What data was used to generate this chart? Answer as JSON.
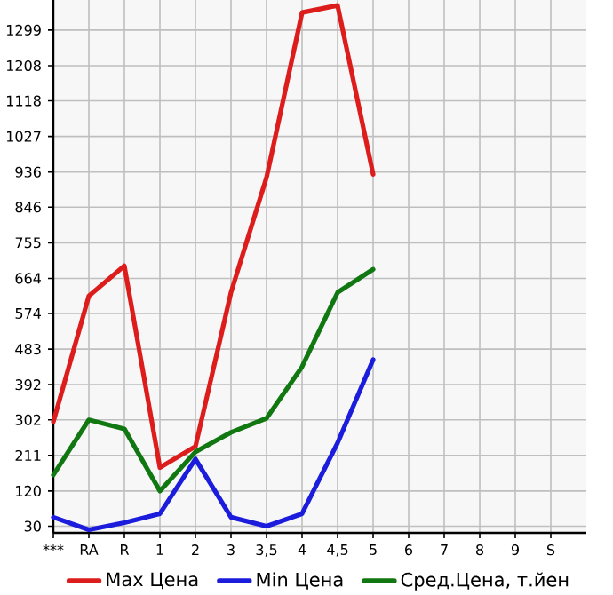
{
  "chart_data": {
    "type": "line",
    "categories": [
      "***",
      "RA",
      "R",
      "1",
      "2",
      "3",
      "3,5",
      "4",
      "4,5",
      "5",
      "6",
      "7",
      "8",
      "9",
      "S"
    ],
    "series": [
      {
        "name": "Max Цена",
        "color": "#dd1c1c",
        "values": [
          297,
          619,
          696,
          180,
          234,
          628,
          922,
          1344,
          1362,
          930,
          null,
          null,
          null,
          null,
          null
        ]
      },
      {
        "name": "Min Цена",
        "color": "#1c1cdd",
        "values": [
          53,
          21,
          39,
          62,
          202,
          53,
          30,
          62,
          243,
          456,
          null,
          null,
          null,
          null,
          null
        ]
      },
      {
        "name": "Сред.Цена, т.йен",
        "color": "#117711",
        "values": [
          161,
          302,
          279,
          120,
          220,
          270,
          306,
          438,
          628,
          687,
          null,
          null,
          null,
          null,
          null
        ]
      }
    ],
    "ylim": [
      13,
      1376
    ],
    "yticks": [
      30,
      120,
      211,
      302,
      392,
      483,
      574,
      664,
      755,
      846,
      936,
      1027,
      1118,
      1208,
      1299
    ],
    "grid": true,
    "legend": "bottom",
    "marker": "none",
    "line_style": "solid"
  }
}
